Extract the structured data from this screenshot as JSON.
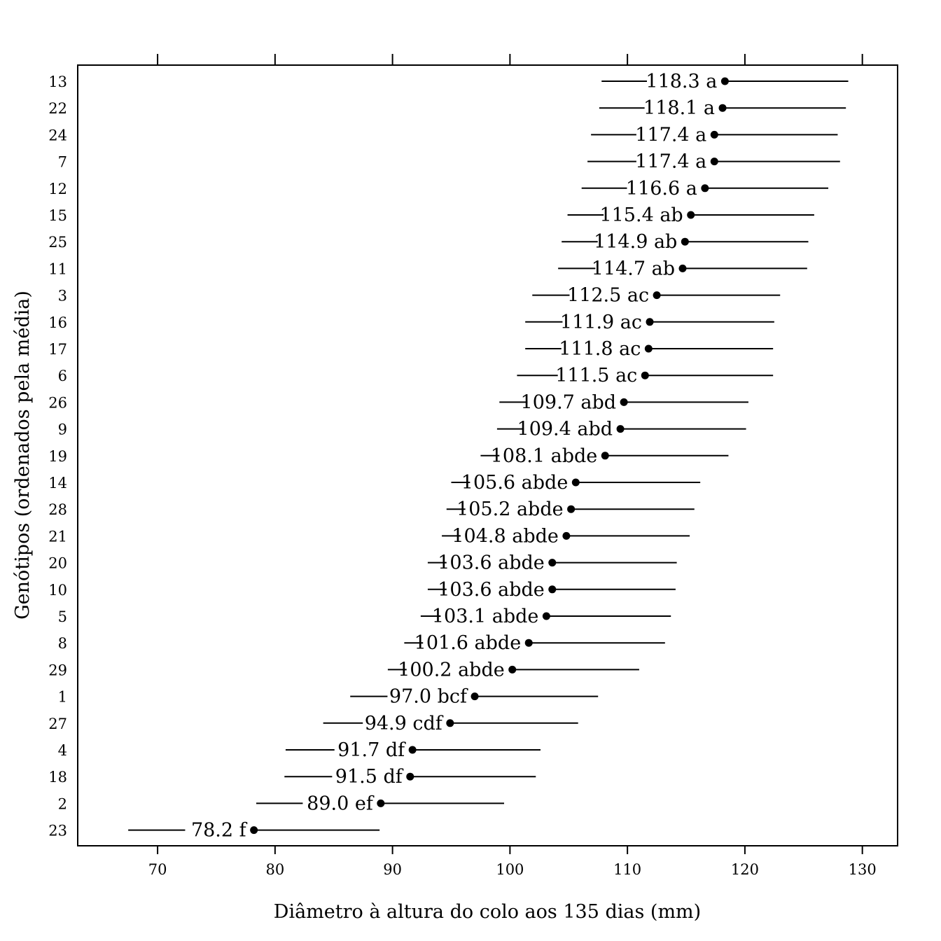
{
  "chart_data": {
    "type": "scatter",
    "orientation": "horizontal-dot-plot-with-intervals",
    "xlabel": "Diâmetro à altura do colo aos 135 dias (mm)",
    "ylabel": "Genótipos (ordenados pela média)",
    "xlim": [
      63.2,
      133.0
    ],
    "xticks": [
      70,
      80,
      90,
      100,
      110,
      120,
      130
    ],
    "x_ticks_top": true,
    "grid": false,
    "categories": [
      "13",
      "22",
      "24",
      "7",
      "12",
      "15",
      "25",
      "11",
      "3",
      "16",
      "17",
      "6",
      "26",
      "9",
      "19",
      "14",
      "28",
      "21",
      "20",
      "10",
      "5",
      "8",
      "29",
      "1",
      "27",
      "4",
      "18",
      "2",
      "23"
    ],
    "means": [
      118.3,
      118.1,
      117.4,
      117.4,
      116.6,
      115.4,
      114.9,
      114.7,
      112.5,
      111.9,
      111.8,
      111.5,
      109.7,
      109.4,
      108.1,
      105.6,
      105.2,
      104.8,
      103.6,
      103.6,
      103.1,
      101.6,
      100.2,
      97.0,
      94.9,
      91.7,
      91.5,
      89.0,
      78.2
    ],
    "lower": [
      107.8,
      107.6,
      106.9,
      106.6,
      106.1,
      104.9,
      104.4,
      104.1,
      101.9,
      101.3,
      101.3,
      100.6,
      99.1,
      98.9,
      97.5,
      95.0,
      94.6,
      94.2,
      93.0,
      93.0,
      92.4,
      91.0,
      89.6,
      86.4,
      84.1,
      80.9,
      80.8,
      78.4,
      67.5
    ],
    "upper": [
      128.8,
      128.6,
      127.9,
      128.1,
      127.1,
      125.9,
      125.4,
      125.3,
      123.0,
      122.5,
      122.4,
      122.4,
      120.3,
      120.1,
      118.6,
      116.2,
      115.7,
      115.3,
      114.2,
      114.1,
      113.7,
      113.2,
      111.0,
      107.5,
      105.8,
      102.6,
      102.2,
      99.5,
      88.9
    ],
    "labels": [
      "118.3 a",
      "118.1 a",
      "117.4 a",
      "117.4 a",
      "116.6 a",
      "115.4 ab",
      "114.9 ab",
      "114.7 ab",
      "112.5 ac",
      "111.9 ac",
      "111.8 ac",
      "111.5 ac",
      "109.7 abd",
      "109.4 abd",
      "108.1 abde",
      "105.6 abde",
      "105.2 abde",
      "104.8 abde",
      "103.6 abde",
      "103.6 abde",
      "103.1 abde",
      "101.6 abde",
      "100.2 abde",
      "97.0 bcf",
      "94.9 cdf",
      "91.7 df",
      "91.5 df",
      "89.0 ef",
      "78.2 f"
    ]
  },
  "colors": {
    "ink": "#000000",
    "background": "#ffffff"
  }
}
